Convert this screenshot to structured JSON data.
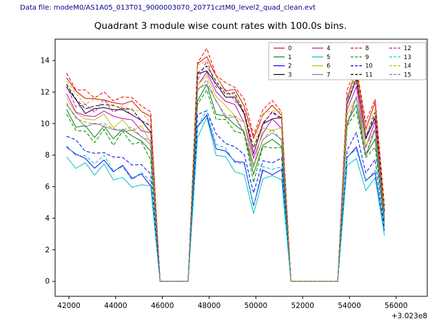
{
  "header": {
    "data_file_label": "Data file: modeM0/AS1A05_013T01_9000003070_20771cztM0_level2_quad_clean.evt"
  },
  "chart_data": {
    "type": "line",
    "title": "Quadrant 3 module wise count rates with 100.0s bins.",
    "xlabel": "",
    "ylabel": "",
    "x_offset_label": "+3.023e8",
    "xlim": [
      41410,
      57330
    ],
    "ylim": [
      -0.95,
      15.35
    ],
    "x_ticks": [
      42000,
      44000,
      46000,
      48000,
      50000,
      52000,
      54000,
      56000
    ],
    "y_ticks": [
      0,
      2,
      4,
      6,
      8,
      10,
      12,
      14
    ],
    "grid": false,
    "legend_position": "upper right",
    "legend_ncol": 4,
    "x": [
      41900,
      42300,
      42700,
      43100,
      43500,
      43900,
      44300,
      44700,
      45100,
      45500,
      45900,
      46300,
      46700,
      47100,
      47500,
      47900,
      48300,
      48700,
      49100,
      49500,
      49900,
      50300,
      50700,
      51100,
      51500,
      51900,
      52300,
      52700,
      53100,
      53500,
      53900,
      54300,
      54700,
      55100,
      55500
    ],
    "series": [
      {
        "name": "0",
        "color": "#e50000",
        "dash": false,
        "values": [
          12.9,
          11.9,
          11.6,
          11.4,
          11.8,
          11.2,
          11.5,
          11.1,
          10.9,
          10.2,
          0,
          0,
          0,
          0,
          13.6,
          14.3,
          12.9,
          12.4,
          12.0,
          11.3,
          8.7,
          10.7,
          11.0,
          10.8,
          0,
          0,
          0,
          0,
          0,
          0,
          11.9,
          13.2,
          9.8,
          11.0,
          4.6
        ]
      },
      {
        "name": "1",
        "color": "#008000",
        "dash": false,
        "values": [
          10.9,
          9.9,
          9.6,
          9.4,
          9.8,
          9.2,
          9.5,
          9.1,
          8.9,
          8.2,
          0,
          0,
          0,
          0,
          11.6,
          12.3,
          10.9,
          10.4,
          10.0,
          9.3,
          6.7,
          8.7,
          9.0,
          8.8,
          0,
          0,
          0,
          0,
          0,
          0,
          9.9,
          11.2,
          7.8,
          9.0,
          3.8
        ]
      },
      {
        "name": "2",
        "color": "#0000ff",
        "dash": false,
        "values": [
          8.5,
          8.0,
          7.8,
          7.4,
          7.6,
          7.1,
          7.0,
          6.7,
          6.6,
          6.4,
          0,
          0,
          0,
          0,
          9.8,
          10.6,
          8.6,
          8.1,
          7.7,
          7.2,
          5.0,
          6.9,
          7.1,
          6.9,
          0,
          0,
          0,
          0,
          0,
          0,
          7.6,
          8.6,
          6.1,
          7.2,
          3.2
        ]
      },
      {
        "name": "3",
        "color": "#000000",
        "dash": false,
        "values": [
          12.3,
          11.3,
          11.0,
          10.8,
          11.2,
          10.6,
          10.9,
          10.5,
          10.3,
          9.6,
          0,
          0,
          0,
          0,
          13.0,
          13.7,
          12.3,
          11.8,
          11.4,
          10.7,
          8.1,
          10.1,
          10.4,
          10.2,
          0,
          0,
          0,
          0,
          0,
          0,
          11.3,
          12.6,
          9.2,
          10.4,
          4.4
        ]
      },
      {
        "name": "4",
        "color": "#bf00bf",
        "dash": false,
        "values": [
          11.9,
          10.9,
          10.6,
          10.4,
          10.8,
          10.2,
          10.5,
          10.1,
          9.9,
          9.2,
          0,
          0,
          0,
          0,
          12.6,
          13.3,
          11.9,
          11.4,
          11.0,
          10.3,
          7.7,
          9.7,
          10.0,
          9.8,
          0,
          0,
          0,
          0,
          0,
          0,
          10.9,
          12.2,
          8.8,
          10.0,
          4.2
        ]
      },
      {
        "name": "5",
        "color": "#00bfbf",
        "dash": false,
        "values": [
          7.9,
          7.5,
          7.3,
          6.9,
          7.1,
          6.6,
          6.5,
          6.2,
          6.1,
          6.0,
          0,
          0,
          0,
          0,
          9.4,
          10.1,
          8.1,
          7.6,
          7.2,
          6.7,
          4.5,
          6.4,
          6.6,
          6.4,
          0,
          0,
          0,
          0,
          0,
          0,
          7.1,
          8.1,
          5.7,
          6.7,
          2.9
        ]
      },
      {
        "name": "6",
        "color": "#bfbf00",
        "dash": false,
        "values": [
          11.6,
          10.6,
          10.3,
          10.1,
          10.5,
          9.9,
          10.2,
          9.8,
          9.6,
          8.9,
          0,
          0,
          0,
          0,
          12.3,
          13.0,
          11.6,
          11.1,
          10.7,
          10.0,
          7.4,
          9.4,
          9.7,
          9.5,
          0,
          0,
          0,
          0,
          0,
          0,
          10.6,
          11.9,
          8.5,
          9.7,
          4.1
        ]
      },
      {
        "name": "7",
        "color": "#808080",
        "dash": false,
        "values": [
          11.2,
          10.2,
          9.9,
          9.7,
          10.1,
          9.5,
          9.8,
          9.4,
          9.2,
          8.5,
          0,
          0,
          0,
          0,
          11.9,
          12.6,
          11.2,
          10.7,
          10.3,
          9.6,
          7.0,
          9.0,
          9.3,
          9.1,
          0,
          0,
          0,
          0,
          0,
          0,
          10.2,
          11.5,
          8.1,
          9.3,
          4.0
        ]
      },
      {
        "name": "8",
        "color": "#e50000",
        "dash": true,
        "values": [
          13.2,
          12.2,
          11.9,
          11.7,
          12.1,
          11.5,
          11.8,
          11.4,
          11.2,
          10.5,
          0,
          0,
          0,
          0,
          13.9,
          14.6,
          13.2,
          12.7,
          12.3,
          11.6,
          9.0,
          11.0,
          11.3,
          11.1,
          0,
          0,
          0,
          0,
          0,
          0,
          12.2,
          13.5,
          10.1,
          11.3,
          4.8
        ]
      },
      {
        "name": "9",
        "color": "#008000",
        "dash": true,
        "values": [
          10.6,
          9.6,
          9.3,
          9.1,
          9.5,
          8.9,
          9.2,
          8.8,
          8.6,
          7.9,
          0,
          0,
          0,
          0,
          11.3,
          12.0,
          10.6,
          10.1,
          9.7,
          9.0,
          6.4,
          8.4,
          8.7,
          8.5,
          0,
          0,
          0,
          0,
          0,
          0,
          9.6,
          10.9,
          7.5,
          8.7,
          3.7
        ]
      },
      {
        "name": "10",
        "color": "#0000ff",
        "dash": true,
        "values": [
          9.2,
          8.7,
          8.5,
          8.1,
          8.3,
          7.8,
          7.7,
          7.4,
          7.3,
          7.1,
          0,
          0,
          0,
          0,
          10.4,
          11.1,
          9.3,
          8.8,
          8.4,
          7.9,
          5.7,
          7.6,
          7.8,
          7.6,
          0,
          0,
          0,
          0,
          0,
          0,
          8.3,
          9.3,
          6.8,
          7.9,
          3.4
        ]
      },
      {
        "name": "11",
        "color": "#000000",
        "dash": true,
        "values": [
          12.5,
          11.5,
          11.2,
          11.0,
          11.4,
          10.8,
          11.1,
          10.7,
          10.5,
          9.8,
          0,
          0,
          0,
          0,
          13.2,
          13.9,
          12.5,
          12.0,
          11.6,
          10.9,
          8.3,
          10.3,
          10.6,
          10.4,
          0,
          0,
          0,
          0,
          0,
          0,
          11.5,
          12.8,
          9.4,
          10.6,
          4.5
        ]
      },
      {
        "name": "12",
        "color": "#bf00bf",
        "dash": true,
        "values": [
          12.4,
          11.4,
          11.1,
          10.9,
          11.3,
          10.7,
          11.0,
          10.6,
          10.4,
          9.7,
          0,
          0,
          0,
          0,
          13.1,
          13.8,
          12.4,
          11.9,
          11.5,
          10.8,
          8.2,
          10.2,
          10.5,
          10.3,
          0,
          0,
          0,
          0,
          0,
          0,
          11.4,
          12.7,
          9.3,
          10.5,
          4.4
        ]
      },
      {
        "name": "13",
        "color": "#00bfbf",
        "dash": true,
        "values": [
          8.6,
          8.1,
          7.9,
          7.5,
          7.7,
          7.2,
          7.1,
          6.8,
          6.7,
          6.5,
          0,
          0,
          0,
          0,
          9.9,
          10.7,
          8.7,
          8.2,
          7.8,
          7.3,
          5.1,
          7.0,
          7.2,
          7.0,
          0,
          0,
          0,
          0,
          0,
          0,
          7.7,
          8.7,
          6.2,
          7.3,
          3.2
        ]
      },
      {
        "name": "14",
        "color": "#bfbf00",
        "dash": true,
        "values": [
          12.7,
          11.7,
          11.4,
          11.2,
          11.6,
          11.0,
          11.3,
          10.9,
          10.7,
          10.0,
          0,
          0,
          0,
          0,
          13.4,
          14.1,
          12.7,
          12.2,
          11.8,
          11.1,
          8.5,
          10.5,
          10.8,
          10.6,
          0,
          0,
          0,
          0,
          0,
          0,
          11.7,
          13.0,
          9.6,
          10.8,
          4.6
        ]
      },
      {
        "name": "15",
        "color": "#808080",
        "dash": true,
        "values": [
          11.3,
          10.3,
          10.0,
          9.8,
          10.2,
          9.6,
          9.9,
          9.5,
          9.3,
          8.6,
          0,
          0,
          0,
          0,
          12.0,
          12.7,
          11.3,
          10.8,
          10.4,
          9.7,
          7.1,
          9.1,
          9.4,
          9.2,
          0,
          0,
          0,
          0,
          0,
          0,
          10.3,
          11.6,
          8.2,
          9.4,
          4.0
        ]
      }
    ]
  }
}
